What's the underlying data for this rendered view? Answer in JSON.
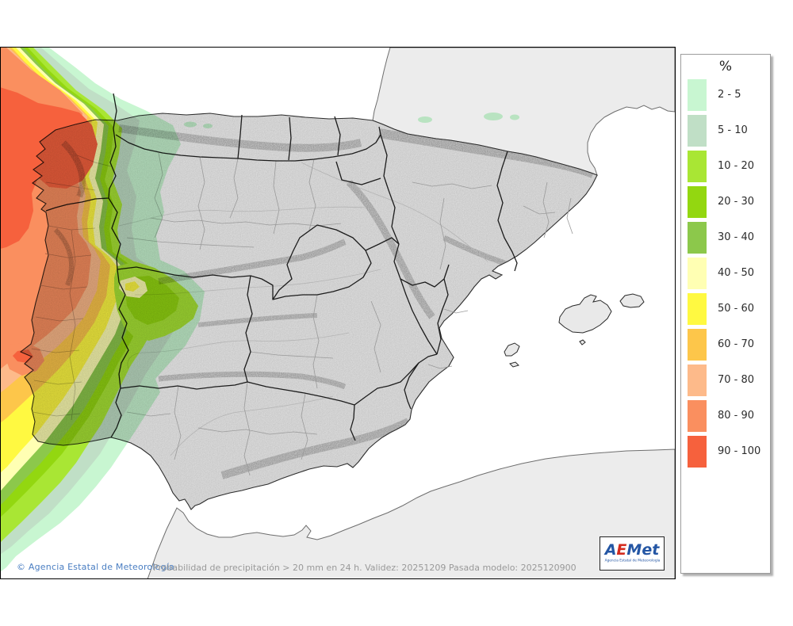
{
  "map": {
    "description": "Precipitation probability map of the Iberian Peninsula"
  },
  "legend": {
    "title": "%",
    "items": [
      {
        "range": "2 - 5",
        "color": "#c8f6d1"
      },
      {
        "range": "5 - 10",
        "color": "#c0dfc6"
      },
      {
        "range": "10 - 20",
        "color": "#a9e634"
      },
      {
        "range": "20 - 30",
        "color": "#93d710"
      },
      {
        "range": "30 - 40",
        "color": "#8cc84b"
      },
      {
        "range": "40 - 50",
        "color": "#ffffb3"
      },
      {
        "range": "50 - 60",
        "color": "#fff941"
      },
      {
        "range": "60 - 70",
        "color": "#fdc64a"
      },
      {
        "range": "70 - 80",
        "color": "#fdba8a"
      },
      {
        "range": "80 - 90",
        "color": "#fa8f5f"
      },
      {
        "range": "90 - 100",
        "color": "#f6613d"
      }
    ]
  },
  "footer": {
    "copyright": "© Agencia Estatal de Meteorología",
    "info": "Probabilidad de precipitación > 20 mm en 24 h. Validez: 20251209 Pasada modelo: 2025120900"
  },
  "logo": {
    "a": "A",
    "e": "E",
    "met": "Met",
    "subtitle": "Agencia Estatal de Meteorología"
  }
}
